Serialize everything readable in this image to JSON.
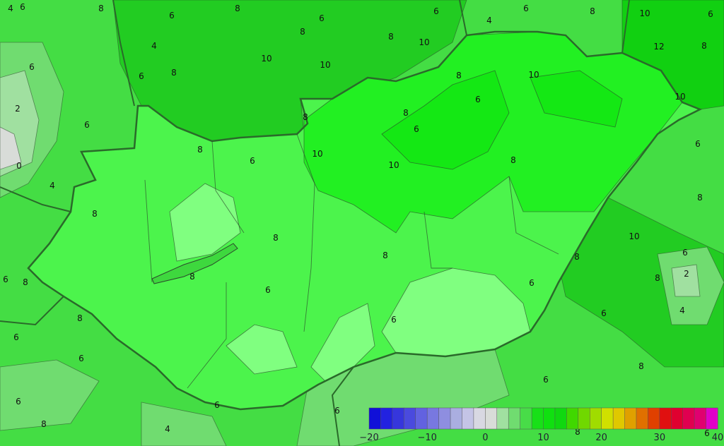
{
  "map": {
    "colors": {
      "outside_base": "#44dd44",
      "outside_warm": "#22cc22",
      "outside_warmer": "#11d011",
      "outside_cool": "#70dc70",
      "outside_cold": "#a0e0a0",
      "outside_coldest": "#d8dcd8",
      "hungary_base": "#4cf44c",
      "hungary_warm": "#22f022",
      "hungary_warmer": "#14e814",
      "hungary_cool": "#80ff80",
      "border": "#2a6a2a",
      "contour": "#2c4a2c"
    },
    "contour_labels": [
      "4",
      "6",
      "8",
      "6",
      "8",
      "6",
      "6",
      "4",
      "6",
      "8",
      "10",
      "6",
      "4",
      "8",
      "8",
      "10",
      "12",
      "8",
      "6",
      "10",
      "10",
      "8",
      "6",
      "8",
      "10",
      "6",
      "10",
      "2",
      "8",
      "8",
      "6",
      "6",
      "8",
      "6",
      "10",
      "6",
      "8",
      "10",
      "0",
      "4",
      "8",
      "8",
      "8",
      "10",
      "6",
      "8",
      "8",
      "8",
      "2",
      "6",
      "8",
      "8",
      "6",
      "6",
      "6",
      "4",
      "8",
      "6",
      "6",
      "6",
      "8",
      "6",
      "6",
      "6",
      "6",
      "8",
      "4",
      "8",
      "6"
    ]
  },
  "legend": {
    "colors": [
      "#1010d8",
      "#2222e0",
      "#3636dc",
      "#4a4ade",
      "#6262e0",
      "#7878e0",
      "#8e8ee0",
      "#aaaee0",
      "#c4c4e6",
      "#d8d8e2",
      "#d8dcd8",
      "#a0e0a0",
      "#70dc70",
      "#48dc48",
      "#18e018",
      "#10e010",
      "#10d810",
      "#40d800",
      "#70d800",
      "#a0dc00",
      "#d0e000",
      "#e0c800",
      "#e0a000",
      "#e07000",
      "#e04000",
      "#e01010",
      "#e00030",
      "#e00050",
      "#e00070",
      "#e000c8"
    ],
    "ticks": [
      "−20",
      "−10",
      "0",
      "10",
      "20",
      "30",
      "40"
    ]
  }
}
